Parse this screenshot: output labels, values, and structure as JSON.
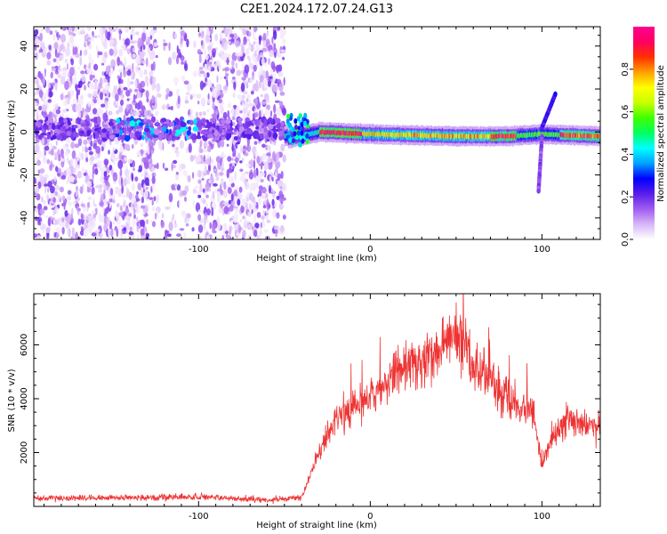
{
  "title": "C2E1.2024.172.07.24.G13",
  "chart_data": [
    {
      "type": "heatmap",
      "xlabel": "Height of straight line (km)",
      "ylabel": "Frequency (Hz)",
      "xlim": [
        -196,
        134
      ],
      "ylim": [
        -50,
        49
      ],
      "xticks": [
        -100,
        0,
        100
      ],
      "yticks": [
        -40,
        -20,
        0,
        20,
        40
      ],
      "colorbar": {
        "label": "Normalized spectral amplitude",
        "range": [
          0,
          1
        ],
        "ticks": [
          0.0,
          0.2,
          0.4,
          0.6,
          0.8
        ],
        "colors": [
          "#ffffff",
          "#d8b6f7",
          "#a05cf0",
          "#5a1ee8",
          "#0000ff",
          "#00a0ff",
          "#00ffff",
          "#00ff60",
          "#40ff00",
          "#c8ff00",
          "#ffff00",
          "#ffa000",
          "#ff3000",
          "#ff0060",
          "#ff0090"
        ]
      },
      "features": {
        "noise_region_x": [
          -196,
          -50
        ],
        "noise_band_freq": [
          -3,
          6
        ],
        "strong_band": [
          {
            "x": -48,
            "freq": -3
          },
          {
            "x": -30,
            "freq": 0
          },
          {
            "x": 0,
            "freq": -1
          },
          {
            "x": 50,
            "freq": -2
          },
          {
            "x": 80,
            "freq": -2
          },
          {
            "x": 100,
            "freq": -1
          },
          {
            "x": 134,
            "freq": -2
          }
        ],
        "branch_up": [
          {
            "x": 100,
            "freq": 2
          },
          {
            "x": 108,
            "freq": 18
          }
        ],
        "branch_down": [
          {
            "x": 100,
            "freq": -2
          },
          {
            "x": 98,
            "freq": -28
          }
        ]
      }
    },
    {
      "type": "line",
      "xlabel": "Height of straight line (km)",
      "ylabel": "SNR (10 * v/v)",
      "xlim": [
        -196,
        134
      ],
      "ylim": [
        0,
        7900
      ],
      "xticks": [
        -100,
        0,
        100
      ],
      "yticks": [
        2000,
        4000,
        6000
      ],
      "color": "#ee3333",
      "envelope": [
        {
          "x": -196,
          "y": 300
        },
        {
          "x": -100,
          "y": 350
        },
        {
          "x": -60,
          "y": 250
        },
        {
          "x": -40,
          "y": 300
        },
        {
          "x": -30,
          "y": 2000
        },
        {
          "x": -20,
          "y": 3200
        },
        {
          "x": 0,
          "y": 4000
        },
        {
          "x": 20,
          "y": 5300
        },
        {
          "x": 40,
          "y": 5700
        },
        {
          "x": 50,
          "y": 6500
        },
        {
          "x": 60,
          "y": 5200
        },
        {
          "x": 80,
          "y": 4000
        },
        {
          "x": 95,
          "y": 3500
        },
        {
          "x": 100,
          "y": 1500
        },
        {
          "x": 105,
          "y": 2500
        },
        {
          "x": 115,
          "y": 3200
        },
        {
          "x": 134,
          "y": 2800
        }
      ]
    }
  ]
}
